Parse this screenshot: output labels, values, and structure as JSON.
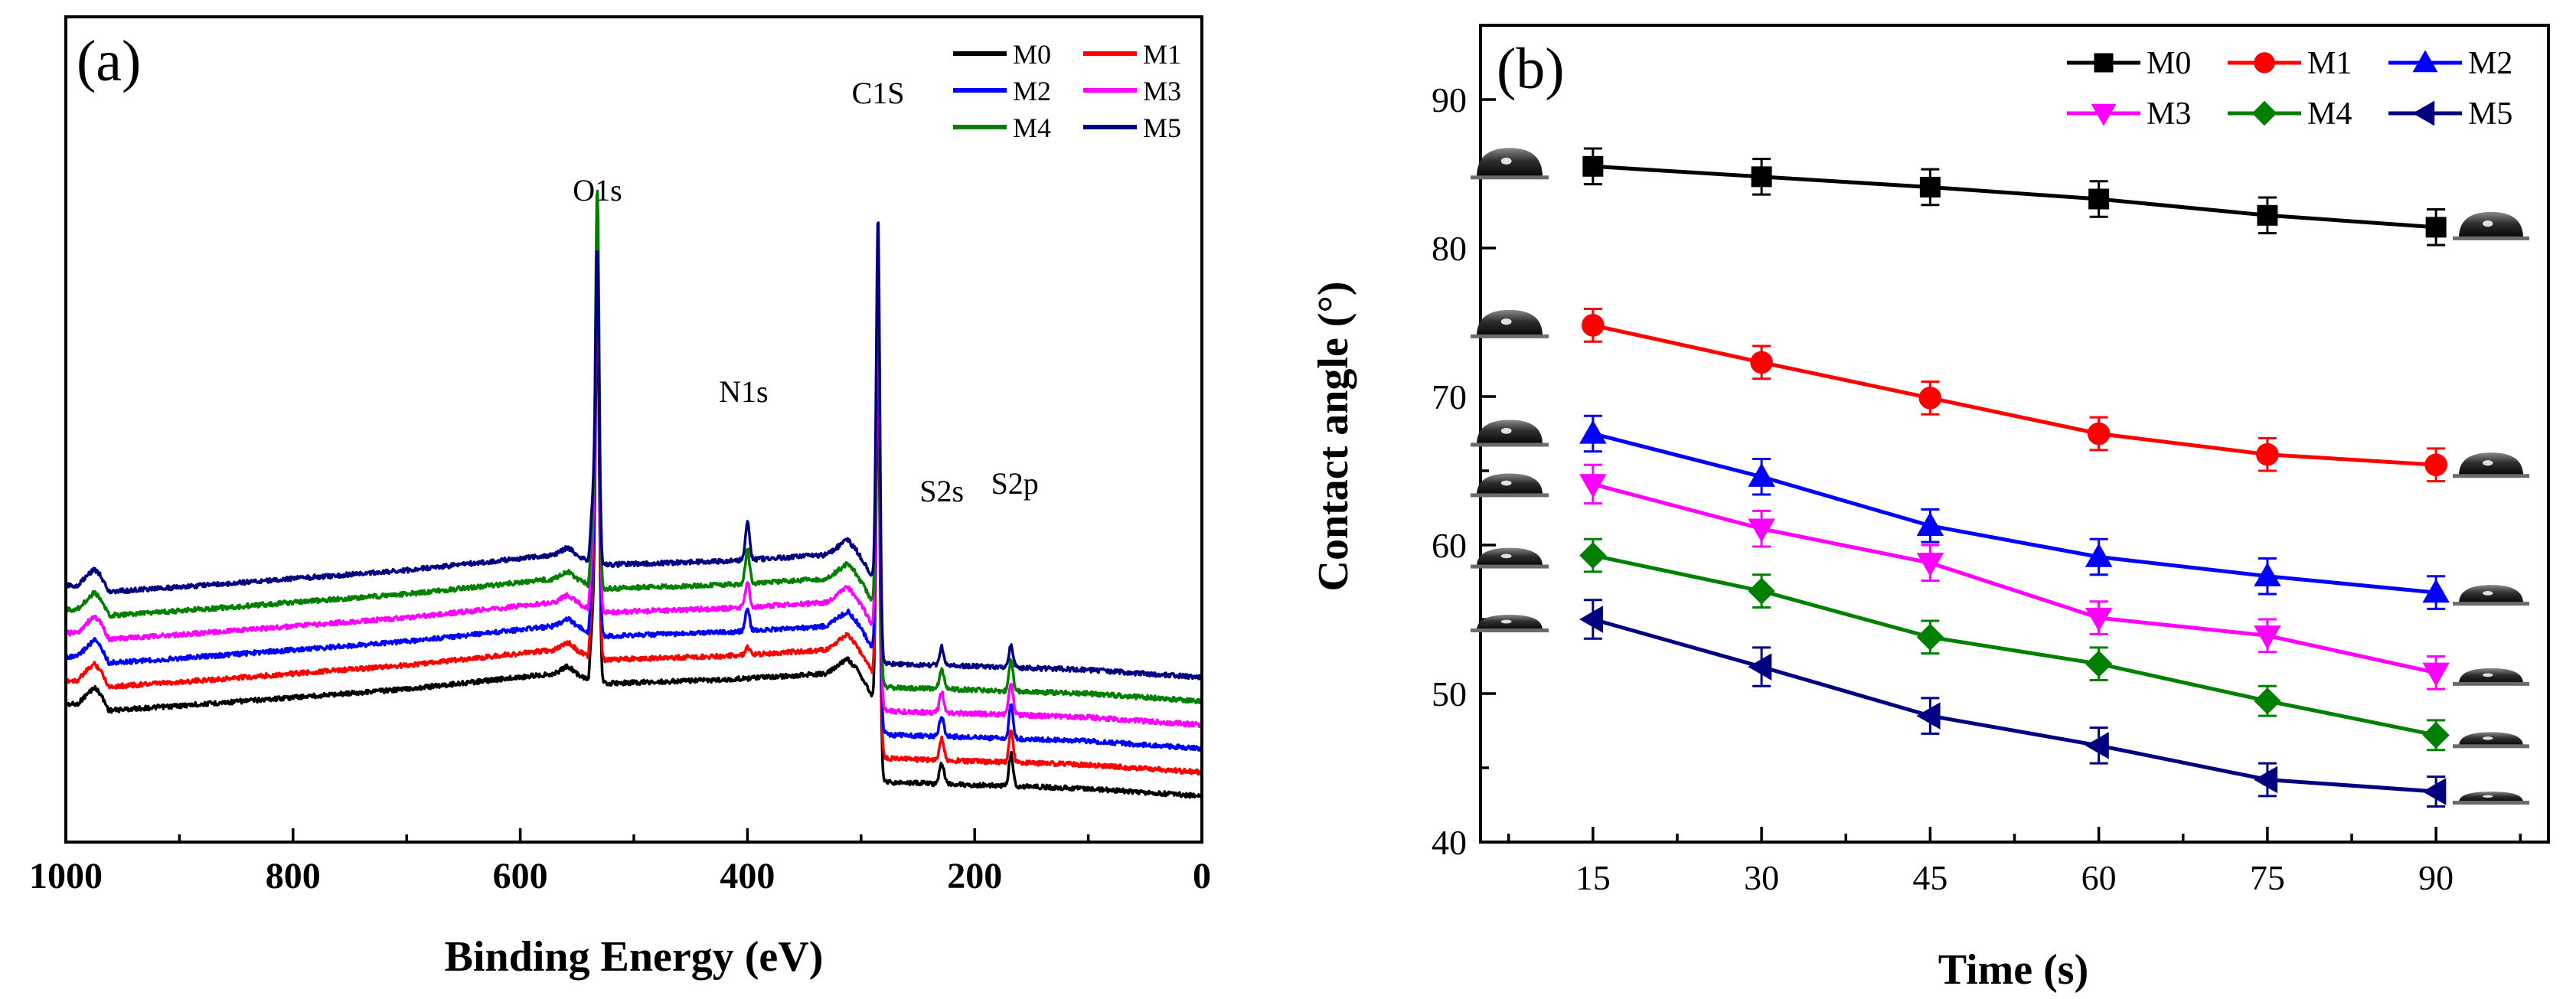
{
  "chart_data": [
    {
      "type": "line",
      "panel_label": "(a)",
      "xlabel": "Binding Energy (eV)",
      "ylabel": "",
      "xlim": [
        1000,
        0
      ],
      "x_reversed": true,
      "xticks": [
        1000,
        800,
        600,
        400,
        200,
        0
      ],
      "yticks": [],
      "grid": false,
      "legend_position": "top-right",
      "series_offset_step": 31,
      "series": [
        {
          "name": "M0",
          "color": "#000000"
        },
        {
          "name": "M1",
          "color": "#ff0000"
        },
        {
          "name": "M2",
          "color": "#0000ff"
        },
        {
          "name": "M3",
          "color": "#ff00ff"
        },
        {
          "name": "M4",
          "color": "#008000"
        },
        {
          "name": "M5",
          "color": "#000080"
        }
      ],
      "annotations": [
        {
          "text": "O1s",
          "x": 532
        },
        {
          "text": "N1s",
          "x": 400
        },
        {
          "text": "C1S",
          "x": 285
        },
        {
          "text": "S2s",
          "x": 229
        },
        {
          "text": "S2p",
          "x": 168
        }
      ]
    },
    {
      "type": "line",
      "panel_label": "(b)",
      "xlabel": "Time (s)",
      "ylabel": "Contact angle (°)",
      "xlim": [
        5,
        100
      ],
      "ylim": [
        40,
        95
      ],
      "xticks": [
        15,
        30,
        45,
        60,
        75,
        90
      ],
      "yticks": [
        40,
        50,
        60,
        70,
        80,
        90
      ],
      "grid": false,
      "legend_position": "top-right",
      "x": [
        15,
        30,
        45,
        60,
        75,
        90
      ],
      "series": [
        {
          "name": "M0",
          "color": "#000000",
          "marker": "square",
          "values": [
            85.5,
            84.8,
            84.1,
            83.3,
            82.2,
            81.4
          ],
          "errors": [
            1.2,
            1.2,
            1.2,
            1.2,
            1.2,
            1.2
          ]
        },
        {
          "name": "M1",
          "color": "#ff0000",
          "marker": "circle",
          "values": [
            74.8,
            72.3,
            69.9,
            67.5,
            66.1,
            65.4
          ],
          "errors": [
            1.1,
            1.1,
            1.1,
            1.1,
            1.1,
            1.1
          ]
        },
        {
          "name": "M2",
          "color": "#0000ff",
          "marker": "triangle-up",
          "values": [
            67.5,
            64.6,
            61.3,
            59.2,
            57.9,
            56.8
          ],
          "errors": [
            1.2,
            1.2,
            1.1,
            1.2,
            1.2,
            1.1
          ]
        },
        {
          "name": "M3",
          "color": "#ff00ff",
          "marker": "triangle-down",
          "values": [
            64.1,
            61.1,
            58.8,
            55.1,
            53.9,
            51.4
          ],
          "errors": [
            1.3,
            1.2,
            1.2,
            1.1,
            1.1,
            1.1
          ]
        },
        {
          "name": "M4",
          "color": "#008000",
          "marker": "diamond",
          "values": [
            59.3,
            56.9,
            53.8,
            52.0,
            49.5,
            47.2
          ],
          "errors": [
            1.1,
            1.1,
            1.1,
            1.1,
            1.0,
            1.0
          ]
        },
        {
          "name": "M5",
          "color": "#000080",
          "marker": "triangle-left",
          "values": [
            55.0,
            51.8,
            48.5,
            46.5,
            44.2,
            43.4
          ],
          "errors": [
            1.3,
            1.3,
            1.2,
            1.2,
            1.1,
            1.0
          ]
        }
      ]
    }
  ]
}
